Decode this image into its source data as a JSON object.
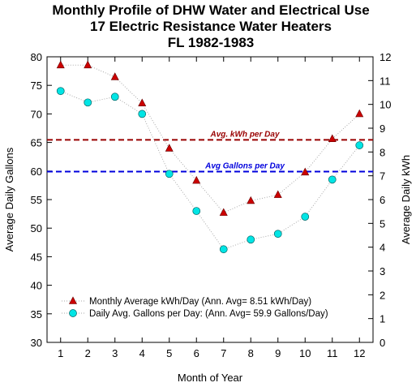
{
  "chart_data": {
    "type": "line",
    "title_lines": [
      "Monthly Profile of DHW Water and Electrical Use",
      "17 Electric Resistance Water Heaters",
      "FL  1982-1983"
    ],
    "xlabel": "Month of Year",
    "ylabel_left": "Average Daily Gallons",
    "ylabel_right": "Average Daily kWh",
    "x": [
      1,
      2,
      3,
      4,
      5,
      6,
      7,
      8,
      9,
      10,
      11,
      12
    ],
    "xlim": [
      0.5,
      12.5
    ],
    "ylim_left": [
      30,
      80
    ],
    "ylim_right": [
      0,
      12
    ],
    "left_ticks": [
      30,
      35,
      40,
      45,
      50,
      55,
      60,
      65,
      70,
      75,
      80
    ],
    "right_ticks": [
      0,
      1,
      2,
      3,
      4,
      5,
      6,
      7,
      8,
      9,
      10,
      11,
      12
    ],
    "grid": false,
    "series": [
      {
        "name": "Monthly Average kWh/Day (Ann. Avg= 8.51 kWh/Day)",
        "axis": "right",
        "marker": "triangle",
        "color": "#cc0000",
        "values": [
          11.65,
          11.65,
          11.15,
          10.05,
          8.15,
          6.8,
          5.45,
          5.95,
          6.2,
          7.15,
          8.55,
          9.6
        ]
      },
      {
        "name": "Daily Avg. Gallons per Day: (Ann. Avg=  59.9 Gallons/Day)",
        "axis": "left",
        "marker": "circle",
        "color": "#00e5e5",
        "values": [
          74,
          72,
          73,
          70,
          59.5,
          53,
          46.3,
          48,
          49,
          52,
          58.5,
          64.5
        ]
      }
    ],
    "reference_lines": [
      {
        "label": "Avg. kWh per Day",
        "axis": "right",
        "value": 8.51,
        "color": "#990000"
      },
      {
        "label": "Avg Gallons per Day",
        "axis": "left",
        "value": 59.9,
        "color": "#0000dd"
      }
    ],
    "legend_position": "bottom-left"
  }
}
